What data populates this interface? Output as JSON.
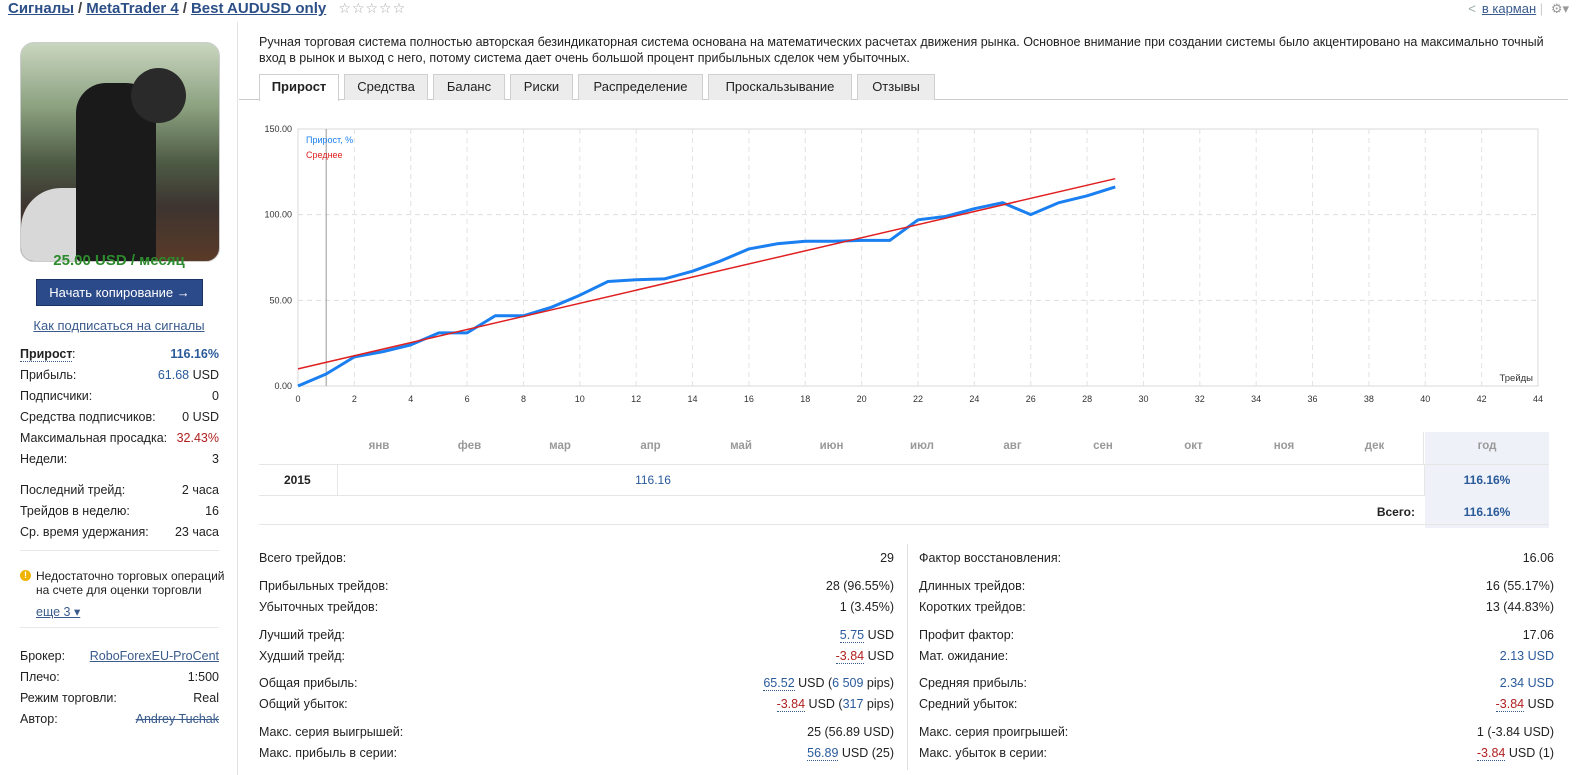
{
  "header": {
    "crumb_signals": "Сигналы",
    "crumb_platform": "MetaTrader 4",
    "crumb_signal": "Best AUDUSD only",
    "rating": "☆☆☆☆☆",
    "pocket_label": "в карман"
  },
  "sidebar": {
    "price": "25.00 USD / месяц",
    "start_button": "Начать копирование →",
    "howto_link": "Как подписаться на сигналы",
    "growth_label": "Прирост",
    "growth_value": "116.16%",
    "profit_label": "Прибыль:",
    "profit_value": "61.68",
    "profit_unit": "USD",
    "subscribers_label": "Подписчики:",
    "subscribers_value": "0",
    "subs_funds_label": "Средства подписчиков:",
    "subs_funds_value": "0 USD",
    "drawdown_label": "Максимальная просадка:",
    "drawdown_value": "32.43%",
    "weeks_label": "Недели:",
    "weeks_value": "3",
    "last_trade_label": "Последний трейд:",
    "last_trade_value": "2 часа",
    "trades_week_label": "Трейдов в неделю:",
    "trades_week_value": "16",
    "hold_label": "Ср. время удержания:",
    "hold_value": "23 часа",
    "warning": "Недостаточно торговых операций на счете для оценки торговли",
    "more_link": "еще 3",
    "broker_label": "Брокер:",
    "broker_value": "RoboForexEU-ProCent",
    "leverage_label": "Плечо:",
    "leverage_value": "1:500",
    "mode_label": "Режим торговли:",
    "mode_value": "Real",
    "author_label": "Автор:",
    "author_value": "Andrey Tuchak"
  },
  "main": {
    "description": "Ручная торговая система полностью авторская безиндикаторная система основана на математических расчетах движения рынка. Основное внимание при создании системы было акцентировано на максимально точный вход в рынок и выход с него, потому система дает очень большой процент прибыльных сделок чем убыточных.",
    "tabs": [
      "Прирост",
      "Средства",
      "Баланс",
      "Риски",
      "Распределение",
      "Проскальзывание",
      "Отзывы"
    ]
  },
  "chart_data": {
    "type": "line",
    "series": [
      {
        "name": "Прирост, %",
        "color": "#1a7ff0",
        "x": [
          0,
          1,
          2,
          3,
          4,
          5,
          6,
          7,
          8,
          9,
          10,
          11,
          12,
          13,
          14,
          15,
          16,
          17,
          18,
          19,
          20,
          21,
          22,
          23,
          24,
          25,
          26,
          27,
          28,
          29
        ],
        "y": [
          0,
          7,
          17,
          20,
          24,
          31,
          31,
          41,
          41,
          46,
          53,
          61,
          62,
          62.5,
          67,
          73,
          80,
          83,
          84.5,
          84.5,
          85,
          85,
          97,
          99,
          103.5,
          107,
          100,
          107,
          111,
          116.16
        ]
      },
      {
        "name": "Среднее",
        "color": "#e02020",
        "x": [
          0,
          29
        ],
        "y": [
          10,
          121
        ]
      }
    ],
    "x_ticks": [
      0,
      2,
      4,
      6,
      8,
      10,
      12,
      14,
      16,
      18,
      20,
      22,
      24,
      26,
      28,
      30,
      32,
      34,
      36,
      38,
      40,
      42,
      44
    ],
    "y_ticks": [
      "0.00",
      "50.00",
      "100.00",
      "150.00"
    ],
    "xlim": [
      0,
      44
    ],
    "ylim": [
      0,
      150
    ],
    "xlabel": "Трейды",
    "marker_x": 1,
    "grid": true,
    "legend": "top-left"
  },
  "monthly": {
    "months": [
      "янв",
      "фев",
      "мар",
      "апр",
      "май",
      "июн",
      "июл",
      "авг",
      "сен",
      "окт",
      "ноя",
      "дек"
    ],
    "year_header": "год",
    "rows": [
      {
        "year": "2015",
        "apr": "116.16",
        "total": "116.16%"
      }
    ],
    "total_label": "Всего:",
    "total_value": "116.16%"
  },
  "stats_left": [
    {
      "label": "Всего трейдов:",
      "value": "29"
    },
    {
      "label": "Прибыльных трейдов:",
      "value": "28 (96.55%)"
    },
    {
      "label": "Убыточных трейдов:",
      "value": "1 (3.45%)"
    },
    {
      "label": "Лучший трейд:",
      "num": "5.75",
      "unit": " USD"
    },
    {
      "label": "Худший трейд:",
      "num": "-3.84",
      "unit": " USD"
    },
    {
      "label": "Общая прибыль:",
      "num": "65.52",
      "unit": " USD (",
      "num2": "6 509",
      "tail": " pips)"
    },
    {
      "label": "Общий убыток:",
      "num": "-3.84",
      "unit": " USD (",
      "num2": "317",
      "tail": " pips)"
    },
    {
      "label": "Макс. серия выигрышей:",
      "value": "25 (56.89 USD)"
    },
    {
      "label": "Макс. прибыль в серии:",
      "num": "56.89",
      "tail": " USD (25)"
    }
  ],
  "stats_right": [
    {
      "label": "Фактор восстановления:",
      "value": "16.06"
    },
    {
      "label": "Длинных трейдов:",
      "value": "16 (55.17%)"
    },
    {
      "label": "Коротких трейдов:",
      "value": "13 (44.83%)"
    },
    {
      "label": "Профит фактор:",
      "value": "17.06"
    },
    {
      "label": "Мат. ожидание:",
      "value": "2.13 USD"
    },
    {
      "label": "Средняя прибыль:",
      "value": "2.34 USD"
    },
    {
      "label": "Средний убыток:",
      "num": "-3.84",
      "tail": " USD"
    },
    {
      "label": "Макс. серия проигрышей:",
      "value": "1 (-3.84 USD)"
    },
    {
      "label": "Макс. убыток в серии:",
      "num": "-3.84",
      "tail": " USD (1)"
    }
  ]
}
